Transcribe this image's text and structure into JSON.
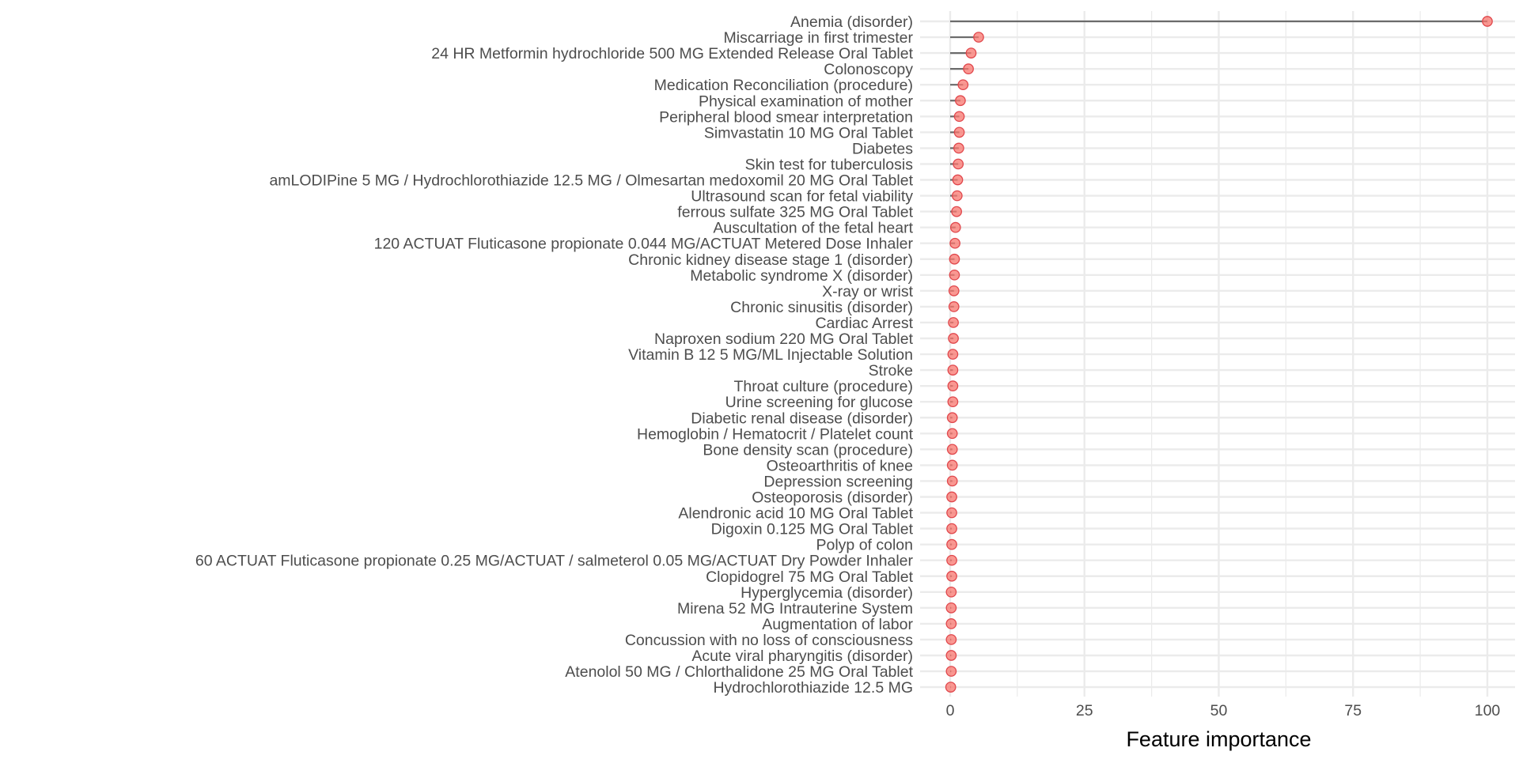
{
  "chart_data": {
    "type": "lollipop",
    "xlabel": "Feature importance",
    "ylabel": "",
    "xlim": [
      0,
      100
    ],
    "x_ticks": [
      0,
      25,
      50,
      75,
      100
    ],
    "x_tick_labels": [
      "0",
      "25",
      "50",
      "75",
      "100"
    ],
    "grid": true,
    "legend": "none",
    "colors": {
      "point": "#F8766D",
      "stem": "#6b6b6b",
      "grid": "#ebebeb",
      "text": "#4d4d4d"
    },
    "categories": [
      "Anemia (disorder)",
      "Miscarriage in first trimester",
      "24 HR Metformin hydrochloride 500 MG Extended Release Oral Tablet",
      "Colonoscopy",
      "Medication Reconciliation (procedure)",
      "Physical examination of mother",
      "Peripheral blood smear interpretation",
      "Simvastatin 10 MG Oral Tablet",
      "Diabetes",
      "Skin test for tuberculosis",
      "amLODIPine 5 MG / Hydrochlorothiazide 12.5 MG / Olmesartan medoxomil 20 MG Oral Tablet",
      "Ultrasound scan for fetal viability",
      "ferrous sulfate 325 MG Oral Tablet",
      "Auscultation of the fetal heart",
      "120 ACTUAT Fluticasone propionate 0.044 MG/ACTUAT Metered Dose Inhaler",
      "Chronic kidney disease stage 1 (disorder)",
      "Metabolic syndrome X (disorder)",
      "X-ray or wrist",
      "Chronic sinusitis (disorder)",
      "Cardiac Arrest",
      "Naproxen sodium 220 MG Oral Tablet",
      "Vitamin B 12 5 MG/ML Injectable Solution",
      "Stroke",
      "Throat culture (procedure)",
      "Urine screening for glucose",
      "Diabetic renal disease (disorder)",
      "Hemoglobin / Hematocrit / Platelet count",
      "Bone density scan (procedure)",
      "Osteoarthritis of knee",
      "Depression screening",
      "Osteoporosis (disorder)",
      "Alendronic acid 10 MG Oral Tablet",
      "Digoxin 0.125 MG Oral Tablet",
      "Polyp of colon",
      "60 ACTUAT Fluticasone propionate 0.25 MG/ACTUAT / salmeterol 0.05 MG/ACTUAT Dry Powder Inhaler",
      "Clopidogrel 75 MG Oral Tablet",
      "Hyperglycemia (disorder)",
      "Mirena 52 MG Intrauterine System",
      "Augmentation of labor",
      "Concussion with no loss of consciousness",
      "Acute viral pharyngitis (disorder)",
      "Atenolol 50 MG / Chlorthalidone 25 MG Oral Tablet",
      "Hydrochlorothiazide 12.5 MG"
    ],
    "values": [
      100,
      5.3,
      3.9,
      3.4,
      2.4,
      1.9,
      1.7,
      1.7,
      1.6,
      1.5,
      1.4,
      1.3,
      1.2,
      1.0,
      0.9,
      0.8,
      0.8,
      0.7,
      0.7,
      0.6,
      0.6,
      0.5,
      0.5,
      0.5,
      0.5,
      0.4,
      0.4,
      0.4,
      0.4,
      0.4,
      0.3,
      0.3,
      0.3,
      0.3,
      0.3,
      0.3,
      0.2,
      0.2,
      0.2,
      0.2,
      0.2,
      0.2,
      0.1
    ]
  }
}
